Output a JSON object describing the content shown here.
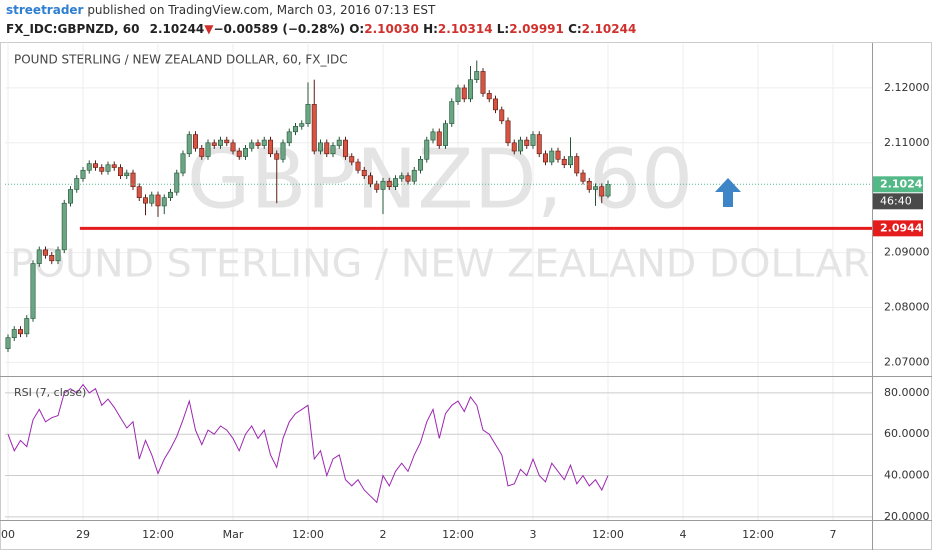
{
  "header": {
    "author": "streetrader",
    "published": "published on TradingView.com, March 03, 2016 07:13 EST",
    "symbol": "FX_IDC:GBPNZD, 60",
    "last": "2.10244",
    "change": "−0.00589 (−0.28%)",
    "o_label": "O:",
    "o": "2.10030",
    "h_label": "H:",
    "h": "2.10314",
    "l_label": "L:",
    "l": "2.09991",
    "c_label": "C:",
    "c": "2.10244"
  },
  "chart_data": {
    "type": "candlestick",
    "title": "POUND STERLING / NEW ZEALAND DOLLAR, 60, FX_IDC",
    "watermark": "GBPNZD, 60",
    "watermark_subtitle": "POUND STERLING / NEW ZEALAND DOLLAR",
    "up_color": "#6ba583",
    "down_color": "#d75442",
    "up_border": "#225437",
    "down_border": "#5b1a13",
    "open": [
      2.0725,
      2.0745,
      2.076,
      2.0752,
      2.078,
      2.088,
      2.0905,
      2.0895,
      2.0885,
      2.0905,
      2.099,
      2.1015,
      2.1035,
      2.105,
      2.1062,
      2.1055,
      2.1048,
      2.106,
      2.1055,
      2.104,
      2.1045,
      2.102,
      2.1,
      2.099,
      2.1005,
      2.0985,
      2.1,
      2.101,
      2.1045,
      2.108,
      2.1115,
      2.109,
      2.1075,
      2.11,
      2.1095,
      2.1105,
      2.11,
      2.1085,
      2.1075,
      2.109,
      2.11,
      2.1095,
      2.1105,
      2.108,
      2.107,
      2.11,
      2.112,
      2.113,
      2.1135,
      2.117,
      2.1085,
      2.11,
      2.108,
      2.1095,
      2.1105,
      2.1075,
      2.1065,
      2.105,
      2.104,
      2.1025,
      2.1015,
      2.103,
      2.102,
      2.1035,
      2.104,
      2.103,
      2.105,
      2.107,
      2.1105,
      2.112,
      2.1095,
      2.1135,
      2.1175,
      2.12,
      2.118,
      2.1215,
      2.123,
      2.119,
      2.118,
      2.116,
      2.114,
      2.11,
      2.1085,
      2.1105,
      2.1095,
      2.1115,
      2.108,
      2.1065,
      2.1085,
      2.107,
      2.106,
      2.1075,
      2.1045,
      2.103,
      2.1015,
      2.102,
      2.1003
    ],
    "high": [
      2.0751,
      2.0766,
      2.0766,
      2.0786,
      2.0886,
      2.0911,
      2.0911,
      2.0901,
      2.0911,
      2.0996,
      2.1021,
      2.1041,
      2.1056,
      2.1068,
      2.1068,
      2.1061,
      2.1066,
      2.1066,
      2.1061,
      2.1051,
      2.1051,
      2.1026,
      2.1006,
      2.1011,
      2.1011,
      2.1006,
      2.1016,
      2.1051,
      2.1086,
      2.1121,
      2.1121,
      2.1096,
      2.1106,
      2.1106,
      2.1111,
      2.1111,
      2.1106,
      2.1091,
      2.1096,
      2.1106,
      2.1106,
      2.1111,
      2.1111,
      2.1086,
      2.1106,
      2.1126,
      2.1136,
      2.1141,
      2.121,
      2.1215,
      2.1106,
      2.1106,
      2.1101,
      2.1111,
      2.1111,
      2.1081,
      2.1071,
      2.1056,
      2.1046,
      2.1031,
      2.1036,
      2.1036,
      2.1041,
      2.1046,
      2.1046,
      2.1056,
      2.1076,
      2.1111,
      2.1126,
      2.1126,
      2.1141,
      2.1181,
      2.1206,
      2.1206,
      2.124,
      2.125,
      2.1236,
      2.1196,
      2.1186,
      2.1166,
      2.1146,
      2.1106,
      2.1111,
      2.1111,
      2.1121,
      2.1121,
      2.1086,
      2.1091,
      2.1091,
      2.1076,
      2.111,
      2.1081,
      2.1051,
      2.1036,
      2.1026,
      2.1026,
      2.10314
    ],
    "low": [
      2.0719,
      2.0739,
      2.0746,
      2.0746,
      2.0774,
      2.0874,
      2.0889,
      2.0879,
      2.0879,
      2.0899,
      2.0984,
      2.1009,
      2.1029,
      2.1044,
      2.1049,
      2.1042,
      2.1042,
      2.1049,
      2.1034,
      2.1034,
      2.1014,
      2.0994,
      2.0968,
      2.0984,
      2.0965,
      2.097,
      2.0994,
      2.1004,
      2.1039,
      2.1074,
      2.1084,
      2.1069,
      2.1069,
      2.1089,
      2.1089,
      2.1094,
      2.1079,
      2.1069,
      2.1069,
      2.1084,
      2.1089,
      2.1089,
      2.1074,
      2.099,
      2.1064,
      2.1094,
      2.1114,
      2.1124,
      2.1129,
      2.1079,
      2.1079,
      2.1074,
      2.1074,
      2.1089,
      2.1069,
      2.1059,
      2.1044,
      2.1034,
      2.1019,
      2.1009,
      2.097,
      2.1014,
      2.1014,
      2.1029,
      2.1024,
      2.1024,
      2.1044,
      2.1064,
      2.1099,
      2.1089,
      2.1089,
      2.1129,
      2.1169,
      2.1174,
      2.1174,
      2.1209,
      2.1184,
      2.1174,
      2.1154,
      2.1134,
      2.1094,
      2.1079,
      2.1079,
      2.1089,
      2.1089,
      2.1074,
      2.1059,
      2.1059,
      2.1064,
      2.1054,
      2.1054,
      2.1039,
      2.1024,
      2.1009,
      2.0985,
      2.099,
      2.09991
    ],
    "close": [
      2.0745,
      2.076,
      2.0752,
      2.078,
      2.088,
      2.0905,
      2.0895,
      2.0885,
      2.0905,
      2.099,
      2.1015,
      2.1035,
      2.105,
      2.1062,
      2.1055,
      2.1048,
      2.106,
      2.1055,
      2.104,
      2.1045,
      2.102,
      2.1,
      2.099,
      2.1005,
      2.0985,
      2.1,
      2.101,
      2.1045,
      2.108,
      2.1115,
      2.109,
      2.1075,
      2.11,
      2.1095,
      2.1105,
      2.11,
      2.1085,
      2.1075,
      2.109,
      2.11,
      2.1095,
      2.1105,
      2.108,
      2.107,
      2.11,
      2.112,
      2.113,
      2.1135,
      2.117,
      2.1085,
      2.11,
      2.108,
      2.1095,
      2.1105,
      2.1075,
      2.1065,
      2.105,
      2.104,
      2.1025,
      2.1015,
      2.103,
      2.102,
      2.1035,
      2.104,
      2.103,
      2.105,
      2.107,
      2.1105,
      2.112,
      2.1095,
      2.1135,
      2.1175,
      2.12,
      2.118,
      2.1215,
      2.123,
      2.119,
      2.118,
      2.116,
      2.114,
      2.11,
      2.1085,
      2.1105,
      2.1095,
      2.1115,
      2.108,
      2.1065,
      2.1085,
      2.107,
      2.106,
      2.1075,
      2.1045,
      2.103,
      2.1015,
      2.102,
      2.1003,
      2.10244
    ],
    "xlim": [
      -0.48,
      138.24
    ],
    "xticks": [
      {
        "value": 0,
        "label": "00"
      },
      {
        "value": 12,
        "label": "29"
      },
      {
        "value": 24,
        "label": "12:00"
      },
      {
        "value": 36,
        "label": "Mar"
      },
      {
        "value": 48,
        "label": "12:00"
      },
      {
        "value": 60,
        "label": "2"
      },
      {
        "value": 72,
        "label": "12:00"
      },
      {
        "value": 84,
        "label": "3"
      },
      {
        "value": 96,
        "label": "12:00"
      },
      {
        "value": 108,
        "label": "4"
      },
      {
        "value": 120,
        "label": "12:00"
      },
      {
        "value": 132,
        "label": "7"
      }
    ],
    "ylim": [
      2.0677,
      2.128
    ],
    "yticks": [
      {
        "value": 2.07,
        "label": "2.07000"
      },
      {
        "value": 2.08,
        "label": "2.08000"
      },
      {
        "value": 2.09,
        "label": "2.09000"
      },
      {
        "value": 2.11,
        "label": "2.11000"
      },
      {
        "value": 2.12,
        "label": "2.12000"
      }
    ],
    "grid": true,
    "last_color": "#53b987",
    "countdown": "46:40",
    "level": {
      "value": 2.09442,
      "label": "2.09442",
      "color": "#e51c1c"
    },
    "indicator": {
      "name": "RSI (7, close)",
      "color": "#9c27b0",
      "values": [
        60,
        52,
        57,
        54,
        67,
        72,
        66,
        68,
        69,
        80,
        82,
        80,
        84,
        80,
        82,
        74,
        77,
        73,
        68,
        63,
        66,
        48,
        57,
        50,
        41,
        48,
        53,
        59,
        67,
        76,
        62,
        55,
        62,
        60,
        64,
        62,
        58,
        52,
        60,
        64,
        58,
        62,
        50,
        44,
        58,
        66,
        70,
        72,
        74,
        48,
        52,
        40,
        48,
        50,
        38,
        35,
        38,
        33,
        30,
        27,
        40,
        35,
        42,
        46,
        42,
        50,
        56,
        66,
        72,
        58,
        70,
        74,
        76,
        71,
        78,
        74,
        62,
        60,
        55,
        50,
        35,
        36,
        43,
        40,
        48,
        40,
        37,
        46,
        42,
        38,
        45,
        36,
        40,
        35,
        38,
        33,
        40
      ],
      "ylim": [
        18.5,
        87.2
      ],
      "yticks": [
        {
          "value": 20,
          "label": "20.0000"
        },
        {
          "value": 40,
          "label": "40.0000"
        },
        {
          "value": 60,
          "label": "60.0000"
        },
        {
          "value": 80,
          "label": "80.0000"
        }
      ]
    }
  }
}
